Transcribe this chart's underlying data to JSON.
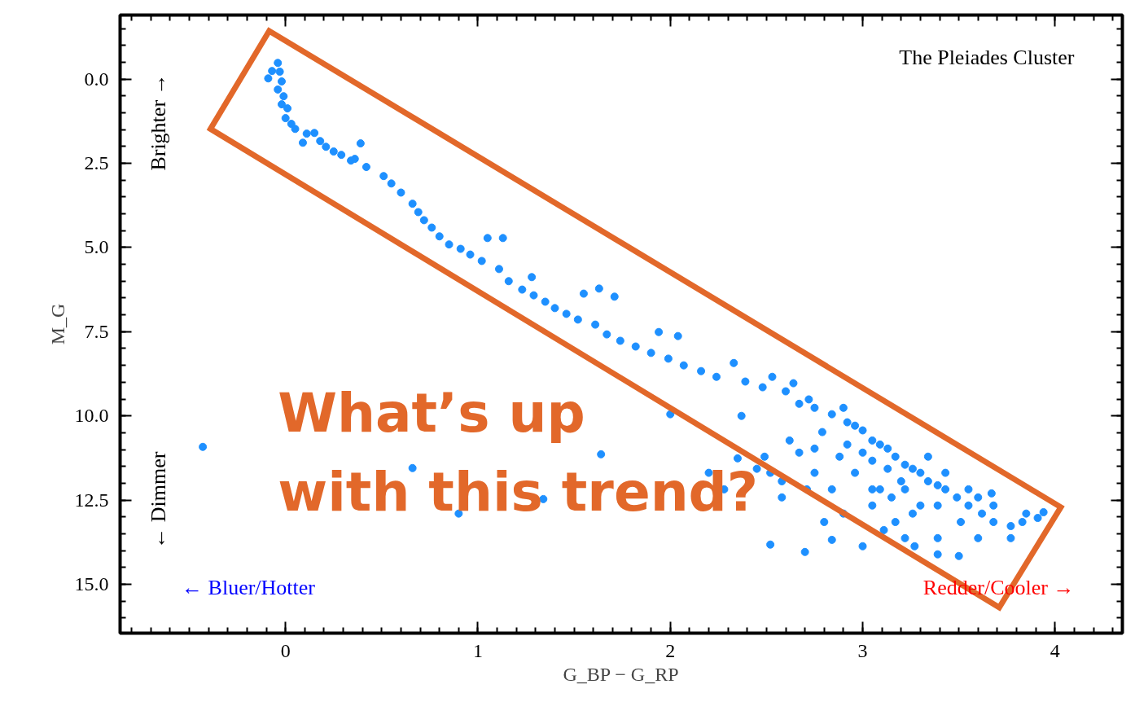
{
  "chart_data": {
    "type": "scatter",
    "xlabel": "G_BP − G_RP",
    "ylabel": "M_G",
    "annotations": [
      "The Pleiades Cluster",
      "Brighter →",
      "← Dimmer",
      "← Bluer/Hotter",
      "Redder/Cooler →",
      "What’s up\nwith this trend?"
    ],
    "xlim": [
      -0.86,
      4.35
    ],
    "ylim": [
      16.45,
      -1.9
    ],
    "xticks": [
      0,
      1,
      2,
      3,
      4
    ],
    "yticks": [
      {
        "value": 0,
        "label": "0.0"
      },
      {
        "value": 2.5,
        "label": "2.5"
      },
      {
        "value": 5,
        "label": "5.0"
      },
      {
        "value": 7.5,
        "label": "7.5"
      },
      {
        "value": 10,
        "label": "10.0"
      },
      {
        "value": 12.5,
        "label": "12.5"
      },
      {
        "value": 15,
        "label": "15.0"
      }
    ],
    "grid": false,
    "marker": "circle",
    "series": [
      {
        "color": "#1e90ff",
        "x": [
          -0.04,
          -0.07,
          -0.09,
          -0.03,
          -0.02,
          -0.04,
          -0.01,
          -0.02,
          0.01,
          0.0,
          0.03,
          0.05,
          0.11,
          0.15,
          0.09,
          0.18,
          0.21,
          0.25,
          0.29,
          0.34,
          0.36,
          0.39,
          0.42,
          0.51,
          0.55,
          0.6,
          0.66,
          0.69,
          0.72,
          0.76,
          0.8,
          0.85,
          0.91,
          0.96,
          1.02,
          1.05,
          1.13,
          1.11,
          1.16,
          1.23,
          1.28,
          1.29,
          1.35,
          1.4,
          1.46,
          1.55,
          1.63,
          1.71,
          1.52,
          1.61,
          1.67,
          1.74,
          1.82,
          1.9,
          1.94,
          2.04,
          1.99,
          2.07,
          2.16,
          2.24,
          2.33,
          2.39,
          2.48,
          2.53,
          2.6,
          2.64,
          2.67,
          2.72,
          2.75,
          2.84,
          2.9,
          2.92,
          2.96,
          3.0,
          3.05,
          3.09,
          3.13,
          3.17,
          3.22,
          3.26,
          3.3,
          3.34,
          3.39,
          3.43,
          3.49,
          3.55,
          3.62,
          3.68,
          3.77,
          3.83,
          3.91,
          3.94,
          -0.43,
          0.66,
          0.9,
          1.34,
          1.64,
          2.0,
          2.2,
          2.28,
          2.37,
          2.35,
          2.49,
          2.52,
          2.58,
          2.62,
          2.67,
          2.71,
          2.75,
          2.8,
          2.84,
          2.9,
          3.0,
          3.05,
          3.11,
          3.17,
          3.22,
          3.27,
          2.52,
          2.7,
          3.39,
          3.39,
          3.51,
          3.6,
          3.68,
          3.77,
          3.85,
          3.67,
          3.5,
          2.84,
          2.96,
          3.09,
          3.2,
          3.34,
          3.43,
          3.3,
          2.88,
          3.0,
          3.13,
          3.22,
          3.39,
          3.55,
          2.79,
          2.92,
          3.05,
          2.75,
          2.58,
          2.45,
          3.05,
          3.15,
          3.26,
          3.6
        ],
        "values": [
          -0.48,
          -0.24,
          -0.02,
          -0.22,
          0.07,
          0.31,
          0.51,
          0.75,
          0.87,
          1.16,
          1.33,
          1.48,
          1.62,
          1.6,
          1.89,
          1.84,
          2.01,
          2.15,
          2.25,
          2.42,
          2.37,
          1.91,
          2.61,
          2.88,
          3.1,
          3.37,
          3.7,
          3.95,
          4.19,
          4.41,
          4.67,
          4.91,
          5.04,
          5.21,
          5.4,
          4.72,
          4.72,
          5.64,
          6.0,
          6.25,
          5.88,
          6.42,
          6.61,
          6.8,
          6.97,
          6.37,
          6.22,
          6.46,
          7.14,
          7.29,
          7.58,
          7.77,
          7.94,
          8.13,
          7.51,
          7.63,
          8.3,
          8.5,
          8.67,
          8.84,
          8.43,
          8.98,
          9.15,
          8.84,
          9.27,
          9.03,
          9.64,
          9.51,
          9.76,
          9.95,
          9.76,
          10.19,
          10.29,
          10.43,
          10.73,
          10.85,
          10.97,
          11.21,
          11.45,
          11.57,
          11.69,
          11.94,
          12.06,
          12.18,
          12.42,
          12.66,
          12.9,
          13.15,
          13.27,
          13.15,
          13.03,
          12.86,
          10.92,
          11.55,
          12.9,
          12.47,
          11.14,
          9.95,
          11.69,
          12.18,
          10.0,
          11.26,
          11.21,
          11.69,
          12.42,
          10.73,
          11.09,
          12.18,
          10.97,
          13.15,
          13.68,
          12.9,
          13.87,
          12.18,
          13.39,
          13.15,
          13.63,
          13.87,
          13.82,
          14.04,
          14.11,
          13.63,
          13.15,
          13.63,
          12.66,
          13.63,
          12.9,
          12.3,
          14.16,
          12.18,
          11.69,
          12.18,
          11.94,
          11.21,
          11.69,
          12.66,
          11.21,
          11.09,
          11.57,
          12.18,
          12.66,
          12.18,
          10.48,
          10.85,
          11.33,
          11.69,
          11.94,
          11.57,
          12.66,
          12.42,
          12.9,
          12.42
        ]
      }
    ]
  }
}
